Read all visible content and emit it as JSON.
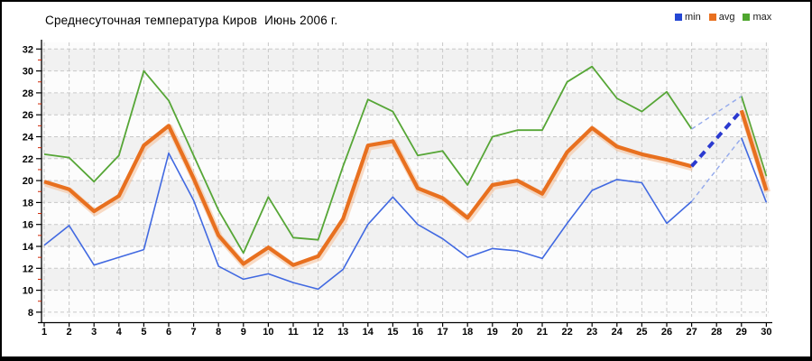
{
  "title": {
    "text": "Среднесуточная температура Киров  Июнь 2006 г."
  },
  "legend": {
    "position": "top-right",
    "items": [
      {
        "label": "min",
        "color": "#2447D4"
      },
      {
        "label": "avg",
        "color": "#E8701F"
      },
      {
        "label": "max",
        "color": "#4FA62E"
      }
    ]
  },
  "chart_data": {
    "type": "line",
    "title": "Среднесуточная температура Киров Июнь 2006 г.",
    "x": [
      1,
      2,
      3,
      4,
      5,
      6,
      7,
      8,
      9,
      10,
      11,
      12,
      13,
      14,
      15,
      16,
      17,
      18,
      19,
      20,
      21,
      22,
      23,
      24,
      25,
      26,
      27,
      28,
      29,
      30
    ],
    "x_tick_labels": [
      "1",
      "2",
      "3",
      "4",
      "5",
      "6",
      "7",
      "8",
      "9",
      "10",
      "11",
      "12",
      "13",
      "14",
      "15",
      "16",
      "17",
      "18",
      "19",
      "20",
      "21",
      "22",
      "23",
      "24",
      "25",
      "26",
      "27",
      "28",
      "29",
      "30"
    ],
    "y_tick_labels": [
      "32",
      "30",
      "28",
      "26",
      "24",
      "22",
      "20",
      "18",
      "16",
      "14",
      "12",
      "10",
      "8"
    ],
    "ylim": [
      8,
      32
    ],
    "ytick_step": 2,
    "grid": "dashed",
    "plot_background": "alternating light bands",
    "missing_day": 28,
    "series": [
      {
        "name": "min",
        "color": "#4169E1",
        "width": 1.6,
        "values": [
          14.1,
          15.9,
          12.3,
          13.0,
          13.7,
          22.5,
          18.2,
          12.2,
          11.0,
          11.5,
          10.7,
          10.1,
          11.9,
          16.0,
          18.5,
          16.0,
          14.7,
          13.0,
          13.8,
          13.6,
          12.9,
          16.1,
          19.1,
          20.1,
          19.8,
          16.1,
          18.1,
          null,
          23.9,
          18.0
        ]
      },
      {
        "name": "avg",
        "color": "#E8701F",
        "width": 4.2,
        "halo": "#F4BE96",
        "values": [
          19.9,
          19.2,
          17.2,
          18.6,
          23.2,
          25.0,
          20.2,
          15.0,
          12.4,
          13.9,
          12.3,
          13.1,
          16.5,
          23.2,
          23.6,
          19.3,
          18.4,
          16.6,
          19.6,
          20.0,
          18.8,
          22.6,
          24.8,
          23.1,
          22.4,
          21.9,
          21.3,
          null,
          26.4,
          19.1
        ]
      },
      {
        "name": "max",
        "color": "#56A636",
        "width": 1.8,
        "values": [
          22.4,
          22.1,
          19.9,
          22.3,
          30.0,
          27.3,
          22.3,
          17.3,
          13.4,
          18.5,
          14.8,
          14.6,
          21.3,
          27.4,
          26.3,
          22.3,
          22.7,
          19.6,
          24.0,
          24.6,
          24.6,
          29.0,
          30.4,
          27.5,
          26.3,
          28.1,
          24.7,
          null,
          27.7,
          20.4
        ]
      }
    ],
    "gap_connectors": [
      {
        "series": "min",
        "from_day": 27,
        "to_day": 29,
        "style": "thin-dashed",
        "color": "#93A9EC"
      },
      {
        "series": "avg",
        "from_day": 27,
        "to_day": 29,
        "style": "thick-dashed",
        "color": "#2B3AD0"
      },
      {
        "series": "max",
        "from_day": 27,
        "to_day": 29,
        "style": "thin-dashed",
        "color": "#93A9EC"
      }
    ],
    "axis_colors": {
      "axis": "#000000",
      "major_tick": "#000000",
      "minor_tick": "#CC2200",
      "gridline": "#C8C8C8"
    }
  }
}
